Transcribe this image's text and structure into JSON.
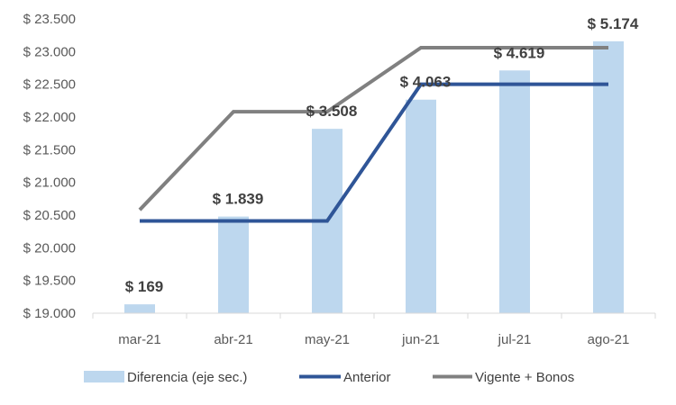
{
  "chart_data": {
    "type": "bar",
    "categories": [
      "mar-21",
      "abr-21",
      "may-21",
      "jun-21",
      "jul-21",
      "ago-21"
    ],
    "ylim": [
      19000,
      23500
    ],
    "y_ticks": [
      "$ 19.000",
      "$ 19.500",
      "$ 20.000",
      "$ 20.500",
      "$ 21.000",
      "$ 21.500",
      "$ 22.000",
      "$ 22.500",
      "$ 23.000",
      "$ 23.500"
    ],
    "y_tick_values": [
      19000,
      19500,
      20000,
      20500,
      21000,
      21500,
      22000,
      22500,
      23000,
      23500
    ],
    "secondary_axis": {
      "min": 0,
      "max": 5600,
      "shown": false
    },
    "grid": false,
    "legend_position": "bottom",
    "series": [
      {
        "name": "Diferencia (eje sec.)",
        "type": "bar",
        "axis": "secondary",
        "color": "#bdd7ee",
        "values": [
          169,
          1839,
          3508,
          4063,
          4619,
          5174
        ],
        "labels": [
          "$ 169",
          "$ 1.839",
          "$ 3.508",
          "$ 4.063",
          "$ 4.619",
          "$ 5.174"
        ]
      },
      {
        "name": "Anterior",
        "type": "line",
        "axis": "primary",
        "color": "#2f5597",
        "values": [
          20410,
          20410,
          20410,
          22500,
          22500,
          22500
        ]
      },
      {
        "name": "Vigente + Bonos",
        "type": "line",
        "axis": "primary",
        "color": "#808080",
        "values": [
          20580,
          22080,
          22080,
          23060,
          23060,
          23060
        ]
      }
    ]
  }
}
